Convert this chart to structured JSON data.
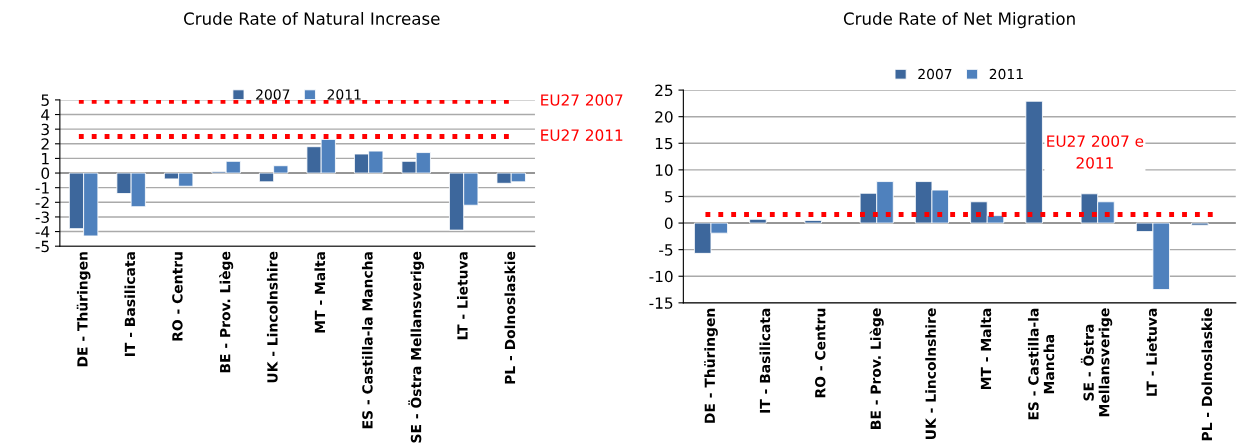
{
  "chart_data": [
    {
      "type": "bar",
      "title": "Crude Rate of Natural Increase",
      "categories": [
        "DE - Thüringen",
        "IT - Basilicata",
        "RO - Centru",
        "BE - Prov. Liège",
        "UK - Lincolnshire",
        "MT - Malta",
        "ES - Castilla-la Mancha",
        "SE - Östra Mellansverige",
        "LT - Lietuva",
        "PL - Dolnoslaskie"
      ],
      "series": [
        {
          "name": "2007",
          "color": "#3d679c",
          "values": [
            -3.8,
            -1.4,
            -0.4,
            0.1,
            -0.6,
            1.8,
            1.3,
            0.8,
            -3.9,
            -0.7
          ]
        },
        {
          "name": "2011",
          "color": "#4f81bd",
          "values": [
            -4.3,
            -2.3,
            -0.9,
            0.8,
            0.5,
            2.3,
            1.5,
            1.4,
            -2.2,
            -0.6
          ]
        }
      ],
      "ylim": [
        -5,
        5
      ],
      "yticks": [
        -5,
        -4,
        -3,
        -2,
        -1,
        0,
        1,
        2,
        3,
        4,
        5
      ],
      "grid": "y",
      "legend": "top",
      "ref_lines": [
        {
          "axis": "y",
          "value": 4.9,
          "label": "EU27 2007",
          "color": "#ff0000",
          "line_style": "dotted"
        },
        {
          "axis": "y",
          "value": 2.5,
          "label": "EU27 2011",
          "color": "#ff0000",
          "line_style": "dotted"
        }
      ]
    },
    {
      "type": "bar",
      "title": "Crude Rate of Net Migration",
      "categories": [
        "DE - Thüringen",
        "IT - Basilicata",
        "RO - Centru",
        "BE - Prov. Liège",
        "UK - Lincolnshire",
        "MT - Malta",
        "ES - Castilla-la\nMancha",
        "SE - Östra\nMellansverige",
        "LT - Lietuva",
        "PL - Dolnoslaskie"
      ],
      "series": [
        {
          "name": "2007",
          "color": "#3d679c",
          "values": [
            -5.7,
            0.7,
            0.5,
            5.6,
            7.8,
            4.0,
            22.9,
            5.5,
            -1.6,
            -0.4
          ]
        },
        {
          "name": "2011",
          "color": "#4f81bd",
          "values": [
            -1.9,
            null,
            null,
            7.8,
            6.2,
            1.4,
            null,
            4.0,
            -12.5,
            null
          ]
        }
      ],
      "ylim": [
        -15,
        25
      ],
      "yticks": [
        -15,
        -10,
        -5,
        0,
        5,
        10,
        15,
        20,
        25
      ],
      "grid": "y",
      "legend": "top",
      "ref_lines": [
        {
          "axis": "y",
          "value": 1.6,
          "label": "EU27 2007 e\n2011",
          "color": "#ff0000",
          "line_style": "dotted"
        }
      ]
    }
  ]
}
